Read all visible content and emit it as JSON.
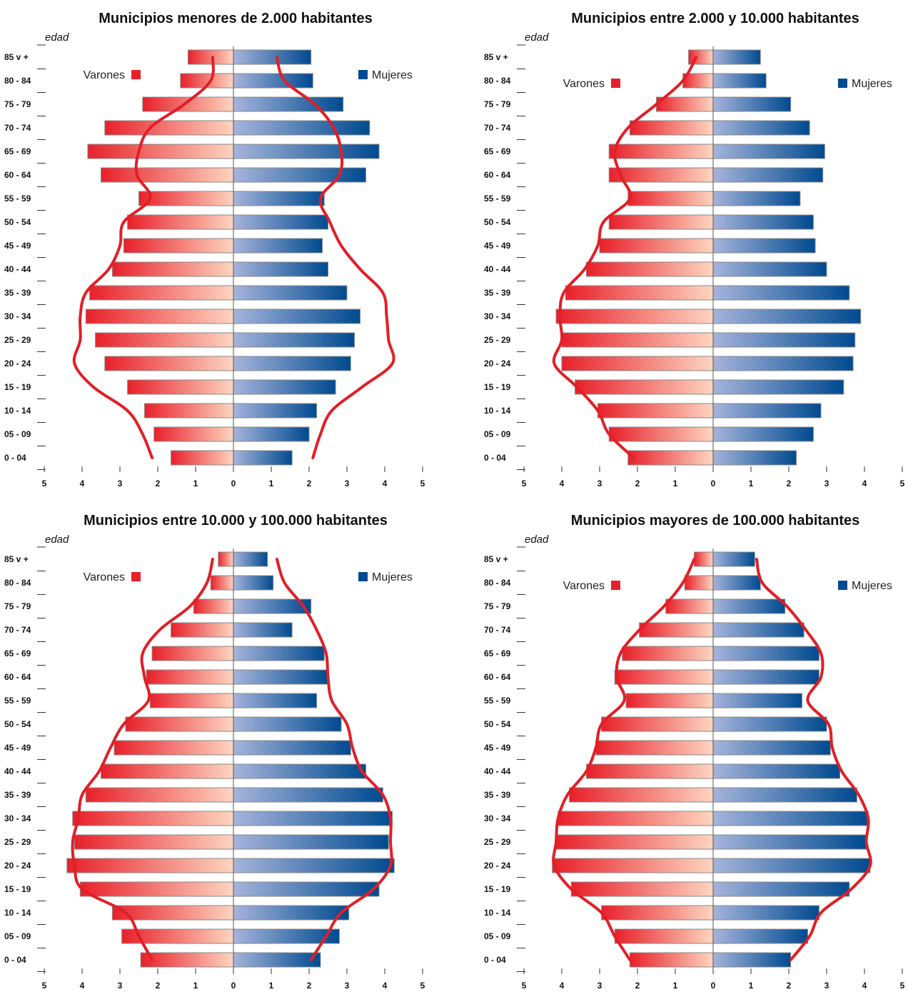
{
  "chart_data": [
    {
      "type": "bar",
      "subtype": "population-pyramid",
      "title": "Municipios menores de 2.000 habitantes",
      "ylabel": "edad",
      "categories": [
        "85 v +",
        "80 - 84",
        "75 - 79",
        "70 - 74",
        "65 - 69",
        "60 - 64",
        "55 - 59",
        "50 - 54",
        "45 - 49",
        "40 - 44",
        "35 - 39",
        "30 - 34",
        "25 - 29",
        "20 - 24",
        "15 - 19",
        "10 - 14",
        "05 - 09",
        "0 - 04"
      ],
      "xticks": [
        "5",
        "4",
        "3",
        "2",
        "1",
        "0",
        "1",
        "2",
        "3",
        "4",
        "5"
      ],
      "xlim": [
        -5,
        5
      ],
      "series": [
        {
          "name": "Varones",
          "values": [
            1.2,
            1.4,
            2.4,
            3.4,
            3.85,
            3.5,
            2.5,
            2.8,
            2.9,
            3.2,
            3.8,
            3.9,
            3.65,
            3.4,
            2.8,
            2.35,
            2.1,
            1.65
          ]
        },
        {
          "name": "Mujeres",
          "values": [
            2.05,
            2.1,
            2.9,
            3.6,
            3.85,
            3.5,
            2.4,
            2.5,
            2.35,
            2.5,
            3.0,
            3.35,
            3.2,
            3.1,
            2.7,
            2.2,
            2.0,
            1.55
          ]
        }
      ],
      "reference_curve": {
        "Varones": [
          0.55,
          0.6,
          1.3,
          2.2,
          2.5,
          2.55,
          2.2,
          2.9,
          3.0,
          3.3,
          3.9,
          4.05,
          4.05,
          4.2,
          3.7,
          2.8,
          2.4,
          2.15
        ],
        "Mujeres": [
          1.15,
          1.35,
          2.15,
          2.65,
          2.85,
          2.8,
          2.3,
          2.55,
          2.85,
          3.35,
          3.95,
          4.05,
          4.1,
          4.2,
          3.4,
          2.6,
          2.3,
          2.1
        ]
      },
      "legend": {
        "Varones": "top-left",
        "Mujeres": "top-right"
      },
      "grid": false,
      "colors": {
        "varones": "#e8202a",
        "varones_light": "#fdd5c0",
        "mujeres": "#004a90",
        "mujeres_light": "#a6b4db",
        "curve": "#e01f27"
      }
    },
    {
      "type": "bar",
      "subtype": "population-pyramid",
      "title": "Municipios entre 2.000 y 10.000 habitantes",
      "ylabel": "edad",
      "categories": [
        "85 v +",
        "80 - 84",
        "75 - 79",
        "70 - 74",
        "65 - 69",
        "60 - 64",
        "55 - 59",
        "50 - 54",
        "45 - 49",
        "40 - 44",
        "35 - 39",
        "30 - 34",
        "25 - 29",
        "20 - 24",
        "15 - 19",
        "10 - 14",
        "05 - 09",
        "0 - 04"
      ],
      "xticks": [
        "5",
        "4",
        "3",
        "2",
        "1",
        "0",
        "1",
        "2",
        "3",
        "4",
        "5"
      ],
      "xlim": [
        -5,
        5
      ],
      "series": [
        {
          "name": "Varones",
          "values": [
            0.65,
            0.8,
            1.5,
            2.2,
            2.75,
            2.75,
            2.25,
            2.75,
            3.0,
            3.35,
            3.9,
            4.15,
            4.0,
            4.0,
            3.65,
            3.05,
            2.75,
            2.25
          ]
        },
        {
          "name": "Mujeres",
          "values": [
            1.25,
            1.4,
            2.05,
            2.55,
            2.95,
            2.9,
            2.3,
            2.65,
            2.7,
            3.0,
            3.6,
            3.9,
            3.75,
            3.7,
            3.45,
            2.85,
            2.65,
            2.2
          ]
        }
      ],
      "reference_curve": {
        "Varones": [
          0.45,
          0.8,
          1.5,
          2.25,
          2.6,
          2.45,
          2.2,
          2.9,
          3.05,
          3.4,
          3.95,
          4.05,
          4.0,
          4.2,
          3.6,
          3.05,
          2.75,
          2.1
        ]
      },
      "legend": {
        "Varones": "top-left",
        "Mujeres": "top-right"
      },
      "grid": false,
      "colors": {
        "varones": "#e8202a",
        "varones_light": "#fdd5c0",
        "mujeres": "#004a90",
        "mujeres_light": "#a6b4db",
        "curve": "#e01f27"
      }
    },
    {
      "type": "bar",
      "subtype": "population-pyramid",
      "title": "Municipios entre 10.000 y 100.000 habitantes",
      "ylabel": "edad",
      "categories": [
        "85 v +",
        "80 - 84",
        "75 - 79",
        "70 - 74",
        "65 - 69",
        "60 - 64",
        "55 - 59",
        "50 - 54",
        "45 - 49",
        "40 - 44",
        "35 - 39",
        "30 - 34",
        "25 - 29",
        "20 - 24",
        "15 - 19",
        "10 - 14",
        "05 - 09",
        "0 - 04"
      ],
      "xticks": [
        "5",
        "4",
        "3",
        "2",
        "1",
        "0",
        "1",
        "2",
        "3",
        "4",
        "5"
      ],
      "xlim": [
        -5,
        5
      ],
      "series": [
        {
          "name": "Varones",
          "values": [
            0.4,
            0.6,
            1.05,
            1.65,
            2.15,
            2.3,
            2.2,
            2.85,
            3.15,
            3.5,
            3.9,
            4.25,
            4.2,
            4.4,
            4.05,
            3.2,
            2.95,
            2.45
          ]
        },
        {
          "name": "Mujeres",
          "values": [
            0.9,
            1.05,
            2.05,
            1.55,
            2.4,
            2.5,
            2.2,
            2.85,
            3.1,
            3.5,
            3.95,
            4.2,
            4.1,
            4.25,
            3.85,
            3.05,
            2.8,
            2.3
          ]
        }
      ],
      "reference_curve": {
        "Varones": [
          0.55,
          0.7,
          1.15,
          1.95,
          2.4,
          2.35,
          2.25,
          2.9,
          3.25,
          3.55,
          4.0,
          4.1,
          4.25,
          4.2,
          4.0,
          2.85,
          2.5,
          2.15
        ],
        "Mujeres": [
          1.15,
          1.35,
          1.85,
          2.2,
          2.45,
          2.5,
          2.6,
          3.0,
          3.15,
          3.4,
          3.95,
          4.15,
          4.15,
          4.15,
          3.7,
          2.85,
          2.45,
          2.05
        ]
      },
      "legend": {
        "Varones": "top-left",
        "Mujeres": "top-right"
      },
      "grid": false,
      "colors": {
        "varones": "#e8202a",
        "varones_light": "#fdd5c0",
        "mujeres": "#004a90",
        "mujeres_light": "#a6b4db",
        "curve": "#e01f27"
      }
    },
    {
      "type": "bar",
      "subtype": "population-pyramid",
      "title": "Municipios mayores de 100.000 habitantes",
      "ylabel": "edad",
      "categories": [
        "85 v +",
        "80 - 84",
        "75 - 79",
        "70 - 74",
        "65 - 69",
        "60 - 64",
        "55 - 59",
        "50 - 54",
        "45 - 49",
        "40 - 44",
        "35 - 39",
        "30 - 34",
        "25 - 29",
        "20 - 24",
        "15 - 19",
        "10 - 14",
        "05 - 09",
        "0 - 04"
      ],
      "xticks": [
        "5",
        "4",
        "3",
        "2",
        "1",
        "0",
        "1",
        "2",
        "3",
        "4",
        "5"
      ],
      "xlim": [
        -5,
        5
      ],
      "series": [
        {
          "name": "Varones",
          "values": [
            0.5,
            0.75,
            1.25,
            1.95,
            2.4,
            2.6,
            2.3,
            2.95,
            3.1,
            3.35,
            3.8,
            4.1,
            4.15,
            4.25,
            3.75,
            2.95,
            2.6,
            2.2
          ]
        },
        {
          "name": "Mujeres",
          "values": [
            1.1,
            1.25,
            1.9,
            2.4,
            2.8,
            2.8,
            2.35,
            3.0,
            3.1,
            3.35,
            3.8,
            4.1,
            4.05,
            4.15,
            3.6,
            2.8,
            2.5,
            2.05
          ]
        }
      ],
      "reference_curve": {
        "Varones": [
          0.5,
          0.8,
          1.3,
          1.95,
          2.45,
          2.55,
          2.35,
          2.95,
          3.1,
          3.35,
          3.85,
          4.1,
          4.15,
          4.2,
          3.75,
          2.95,
          2.6,
          2.2
        ],
        "Mujeres": [
          1.15,
          1.3,
          1.95,
          2.45,
          2.85,
          2.85,
          2.5,
          3.05,
          3.15,
          3.4,
          3.85,
          4.1,
          4.05,
          4.15,
          3.65,
          2.85,
          2.55,
          2.05
        ]
      },
      "legend": {
        "Varones": "top-left",
        "Mujeres": "top-right"
      },
      "grid": false,
      "colors": {
        "varones": "#e8202a",
        "varones_light": "#fdd5c0",
        "mujeres": "#004a90",
        "mujeres_light": "#a6b4db",
        "curve": "#e01f27"
      }
    }
  ]
}
